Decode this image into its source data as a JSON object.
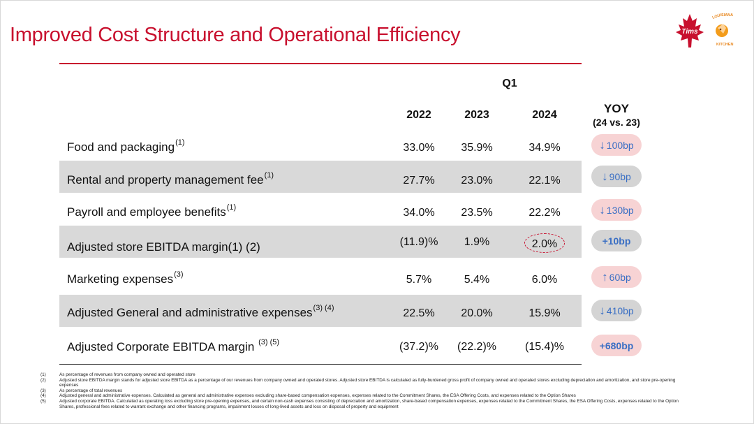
{
  "title": "Improved Cost Structure and Operational Efficiency",
  "logos": {
    "tims": "Tims",
    "kitchen": "LOUISIANA KITCHEN"
  },
  "table": {
    "period": "Q1",
    "years": [
      "2022",
      "2023",
      "2024"
    ],
    "yoy_title": "YOY",
    "yoy_sub": "(24 vs. 23)",
    "rows": [
      {
        "label": "Food and packaging",
        "sup": "(1)",
        "v2022": "33.0%",
        "v2023": "35.9%",
        "v2024": "34.9%",
        "yoy": "100bp",
        "direction": "down"
      },
      {
        "label": "Rental and property management fee",
        "sup": "(1)",
        "v2022": "27.7%",
        "v2023": "23.0%",
        "v2024": "22.1%",
        "yoy": "90bp",
        "direction": "down"
      },
      {
        "label": "Payroll and employee benefits",
        "sup": "(1)",
        "v2022": "34.0%",
        "v2023": "23.5%",
        "v2024": "22.2%",
        "yoy": "130bp",
        "direction": "down"
      },
      {
        "label": "Adjusted store EBITDA margin(1) (2)",
        "sup": "",
        "v2022": "(11.9)%",
        "v2023": "1.9%",
        "v2024": "2.0%",
        "yoy": "+10bp",
        "direction": "none"
      },
      {
        "label": "Marketing expenses",
        "sup": "(3)",
        "v2022": "5.7%",
        "v2023": "5.4%",
        "v2024": "6.0%",
        "yoy": "60bp",
        "direction": "up"
      },
      {
        "label": "Adjusted General and administrative expenses",
        "sup": "(3) (4)",
        "v2022": "22.5%",
        "v2023": "20.0%",
        "v2024": "15.9%",
        "yoy": "410bp",
        "direction": "down"
      },
      {
        "label": "Adjusted Corporate EBITDA margin ",
        "sup": "(3) (5)",
        "v2022": "(37.2)%",
        "v2023": "(22.2)%",
        "v2024": "(15.4)%",
        "yoy": "+680bp",
        "direction": "none"
      }
    ]
  },
  "colors": {
    "brand_red": "#c8102e",
    "arrow_blue": "#3a6fc4",
    "pill_pink": "#f7d3d4",
    "pill_grey": "#d4d4d4"
  },
  "footnotes": [
    {
      "n": "(1)",
      "text": "As percentage of revenues from company owned and operated store"
    },
    {
      "n": "(2)",
      "text": "Adjusted store EBITDA margin stands for adjusted store EBITDA as a percentage of our revenues from company owned and operated stores. Adjusted store EBITDA is calculated  as fully-burdened gross profit of company owned and operated stores excluding depreciation and amortization, and store pre-opening expenses"
    },
    {
      "n": "(3)",
      "text": "As percentage of total revenues"
    },
    {
      "n": "(4)",
      "text": "Adjusted general and administrative expenses. Calculated as general and administrative expenses excluding share-based compensation expenses, expenses related to the Commitment Shares, the ESA Offering Costs, and expenses related to the Option Shares"
    },
    {
      "n": "(5)",
      "text": "Adjusted corporate EBITDA. Calculated as operating loss excluding store pre-opening expenses, and certain non-cash expenses consisting of depreciation and amortization, share-based compensation expenses, expenses related to the Commitment Shares, the ESA Offering Costs, expenses related to the Option Shares, professional fees related to warrant exchange and other financing programs, impairment losses of long-lived assets and loss on disposal of property and equipment"
    }
  ]
}
